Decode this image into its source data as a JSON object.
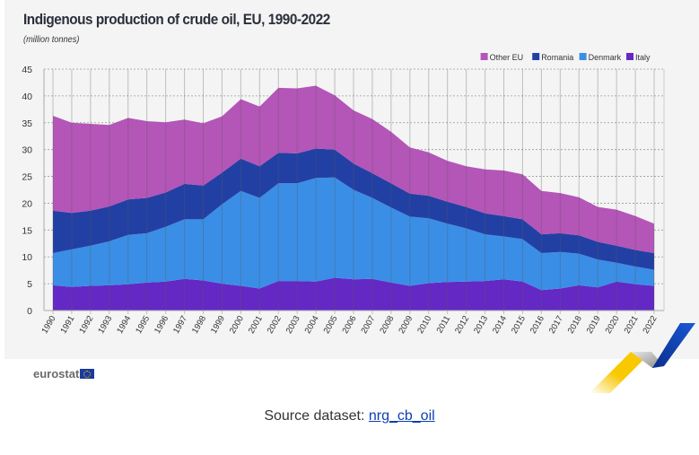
{
  "chart_data": {
    "type": "area",
    "stacked": true,
    "title": "Indigenous production of crude oil, EU, 1990-2022",
    "subtitle": "(million tonnes)",
    "xlabel": "",
    "ylabel": "",
    "ylim": [
      0,
      45
    ],
    "yticks": [
      0,
      5,
      10,
      15,
      20,
      25,
      30,
      35,
      40,
      45
    ],
    "grid": true,
    "legend_position": "top-right",
    "categories": [
      "1990",
      "1991",
      "1992",
      "1993",
      "1994",
      "1995",
      "1996",
      "1997",
      "1998",
      "1999",
      "2000",
      "2001",
      "2002",
      "2003",
      "2004",
      "2005",
      "2006",
      "2007",
      "2008",
      "2009",
      "2010",
      "2011",
      "2012",
      "2013",
      "2014",
      "2015",
      "2016",
      "2017",
      "2018",
      "2019",
      "2020",
      "2021",
      "2022"
    ],
    "series": [
      {
        "name": "Italy",
        "color": "#6428c4",
        "values": [
          4.7,
          4.4,
          4.6,
          4.7,
          4.9,
          5.2,
          5.4,
          5.9,
          5.6,
          5.0,
          4.6,
          4.1,
          5.5,
          5.5,
          5.4,
          6.1,
          5.8,
          5.9,
          5.2,
          4.6,
          5.1,
          5.3,
          5.4,
          5.5,
          5.8,
          5.4,
          3.8,
          4.1,
          4.7,
          4.3,
          5.4,
          4.9,
          4.6
        ]
      },
      {
        "name": "Denmark",
        "color": "#3a8ee6",
        "values": [
          6.0,
          7.0,
          7.5,
          8.2,
          9.2,
          9.2,
          10.2,
          11.1,
          11.4,
          14.8,
          17.7,
          16.9,
          18.2,
          18.2,
          19.3,
          18.7,
          16.7,
          15.1,
          14.0,
          12.9,
          12.1,
          10.9,
          9.9,
          8.7,
          8.0,
          7.9,
          6.9,
          6.8,
          5.9,
          5.2,
          3.5,
          3.3,
          3.0
        ]
      },
      {
        "name": "Romania",
        "color": "#2240a4",
        "values": [
          7.9,
          6.8,
          6.5,
          6.5,
          6.6,
          6.6,
          6.4,
          6.6,
          6.3,
          5.9,
          6.0,
          5.9,
          5.7,
          5.6,
          5.5,
          5.2,
          4.9,
          4.6,
          4.5,
          4.3,
          4.2,
          4.1,
          4.0,
          3.9,
          3.8,
          3.7,
          3.5,
          3.5,
          3.4,
          3.3,
          3.2,
          3.1,
          3.1
        ]
      },
      {
        "name": "Other EU",
        "color": "#b455b8",
        "values": [
          17.7,
          16.8,
          16.2,
          15.2,
          15.2,
          14.3,
          13.1,
          12.0,
          11.6,
          10.5,
          11.1,
          11.1,
          12.1,
          12.1,
          11.7,
          10.1,
          9.9,
          10.1,
          9.6,
          8.6,
          8.1,
          7.6,
          7.6,
          8.2,
          8.5,
          8.4,
          8.1,
          7.5,
          7.1,
          6.5,
          6.7,
          6.3,
          5.5
        ]
      }
    ],
    "legend_order": [
      "Other EU",
      "Romania",
      "Denmark",
      "Italy"
    ]
  },
  "footer": {
    "logo_text": "eurostat",
    "source_label": "Source dataset: ",
    "source_link": "nrg_cb_oil"
  }
}
